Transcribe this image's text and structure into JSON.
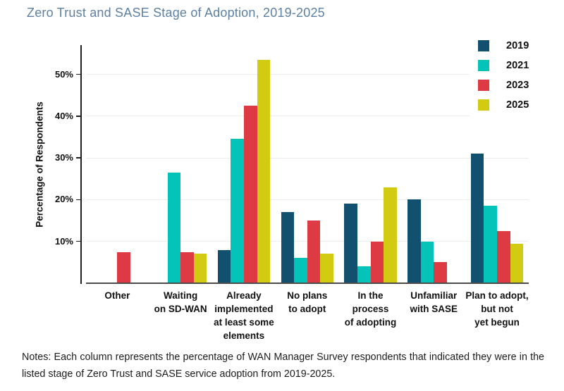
{
  "colors": {
    "title": "#5e81a2",
    "axis": "#1f1f1f",
    "baseline": "#4c4c4c",
    "gridline": "#ededed",
    "text": "#111111"
  },
  "chart_data": {
    "type": "bar",
    "title": "Zero Trust and SASE Stage of Adoption, 2019-2025",
    "xlabel": "",
    "ylabel": "Percentage of Respondents",
    "ylim": [
      0,
      57
    ],
    "yticks": [
      10,
      20,
      30,
      40,
      50
    ],
    "ytick_suffix": "%",
    "grid": true,
    "legend_position": "top-right",
    "categories": [
      "Other",
      "Waiting on SD-WAN",
      "Already implemented at least some elements",
      "No plans to adopt",
      "In the process of adopting",
      "Unfamiliar with SASE",
      "Plan to adopt, but not yet begun"
    ],
    "category_label_lines": [
      [
        "Other"
      ],
      [
        "Waiting",
        "on SD-WAN"
      ],
      [
        "Already",
        "implemented",
        "at least some",
        "elements"
      ],
      [
        "No plans",
        "to adopt"
      ],
      [
        "In the process",
        "of adopting"
      ],
      [
        "Unfamiliar",
        "with SASE"
      ],
      [
        "Plan to adopt,",
        "but not",
        "yet begun"
      ]
    ],
    "series": [
      {
        "name": "2019",
        "color": "#12506f",
        "values": [
          0,
          0,
          8,
          17,
          19,
          20,
          31
        ]
      },
      {
        "name": "2021",
        "color": "#04c3b9",
        "values": [
          0,
          26.5,
          34.5,
          6,
          4,
          10,
          18.5
        ]
      },
      {
        "name": "2023",
        "color": "#dd3a43",
        "values": [
          7.5,
          7.5,
          42.5,
          15,
          10,
          5,
          12.5
        ]
      },
      {
        "name": "2025",
        "color": "#d3cb11",
        "values": [
          0,
          7,
          53.5,
          7,
          23,
          0,
          9.5
        ]
      }
    ]
  },
  "notes": {
    "text": "Notes: Each column represents the percentage of WAN Manager Survey respondents that indicated they were in the listed stage of Zero Trust and SASE service adoption from 2019-2025."
  }
}
